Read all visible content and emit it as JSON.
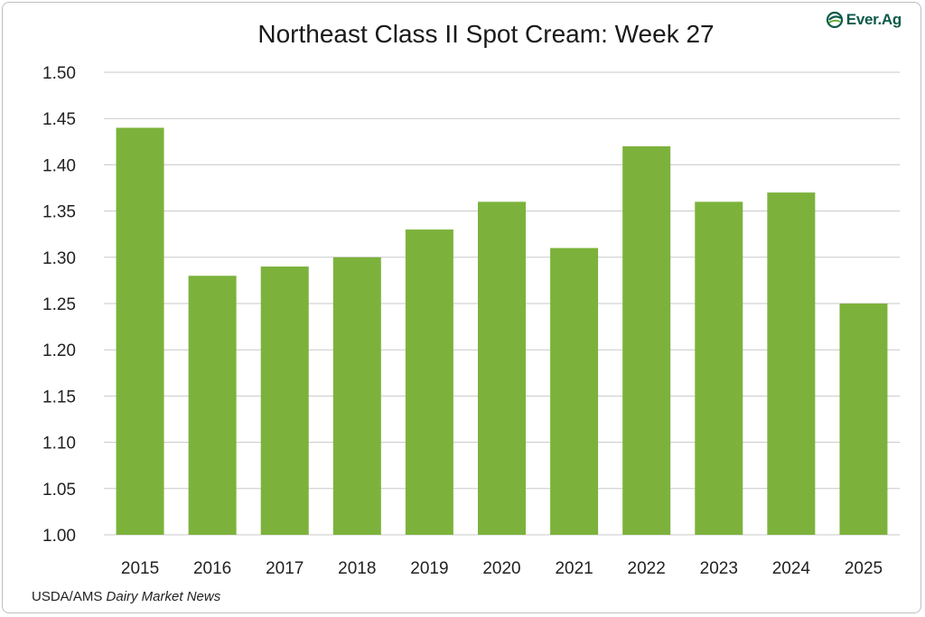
{
  "chart_data": {
    "type": "bar",
    "title": "Northeast Class II Spot Cream: Week 27",
    "categories": [
      "2015",
      "2016",
      "2017",
      "2018",
      "2019",
      "2020",
      "2021",
      "2022",
      "2023",
      "2024",
      "2025"
    ],
    "values": [
      1.44,
      1.28,
      1.29,
      1.3,
      1.33,
      1.36,
      1.31,
      1.42,
      1.36,
      1.37,
      1.25
    ],
    "ylim": [
      1.0,
      1.5
    ],
    "yticks": [
      "1.00",
      "1.05",
      "1.10",
      "1.15",
      "1.20",
      "1.25",
      "1.30",
      "1.35",
      "1.40",
      "1.45",
      "1.50"
    ],
    "xlabel": "",
    "ylabel": "",
    "grid": true,
    "bar_color": "#7cb23b"
  },
  "logo": {
    "text": "Ever.Ag",
    "icon": "ever-ag-leaf-icon",
    "color": "#0b5a4a"
  },
  "source": {
    "prefix": "USDA/AMS ",
    "italic": "Dairy Market News"
  }
}
